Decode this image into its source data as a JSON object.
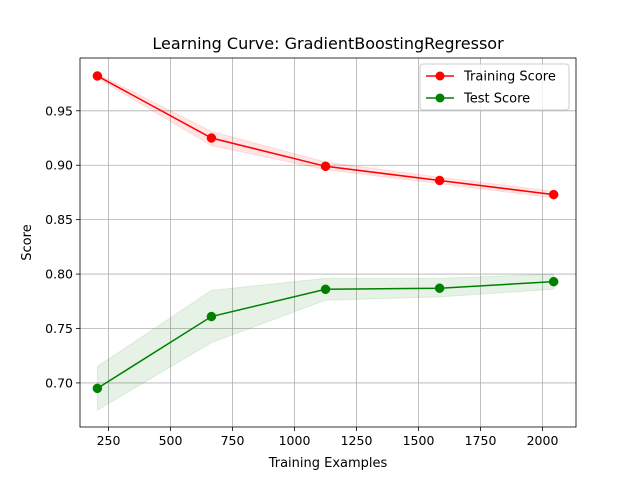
{
  "chart_data": {
    "type": "line",
    "title": "Learning Curve: GradientBoostingRegressor",
    "xlabel": "Training Examples",
    "ylabel": "Score",
    "xlim": [
      135,
      2135
    ],
    "ylim": [
      0.6595,
      0.9985
    ],
    "xticks": [
      250,
      500,
      750,
      1000,
      1250,
      1500,
      1750,
      2000
    ],
    "xtick_labels": [
      "250",
      "500",
      "750",
      "1000",
      "1250",
      "1500",
      "1750",
      "2000"
    ],
    "yticks": [
      0.7,
      0.75,
      0.8,
      0.85,
      0.9,
      0.95
    ],
    "ytick_labels": [
      "0.70",
      "0.75",
      "0.80",
      "0.85",
      "0.90",
      "0.95"
    ],
    "grid": true,
    "legend_position": "top-right",
    "x": [
      205,
      665,
      1125,
      1585,
      2045
    ],
    "series": [
      {
        "name": "Training Score",
        "color": "#ff0000",
        "values": [
          0.982,
          0.925,
          0.899,
          0.886,
          0.873
        ],
        "band_lower": [
          0.98,
          0.918,
          0.896,
          0.883,
          0.87
        ],
        "band_upper": [
          0.984,
          0.931,
          0.903,
          0.889,
          0.876
        ]
      },
      {
        "name": "Test Score",
        "color": "#008000",
        "values": [
          0.695,
          0.761,
          0.786,
          0.787,
          0.793
        ],
        "band_lower": [
          0.675,
          0.737,
          0.776,
          0.779,
          0.786
        ],
        "band_upper": [
          0.715,
          0.785,
          0.796,
          0.796,
          0.8
        ]
      }
    ]
  }
}
